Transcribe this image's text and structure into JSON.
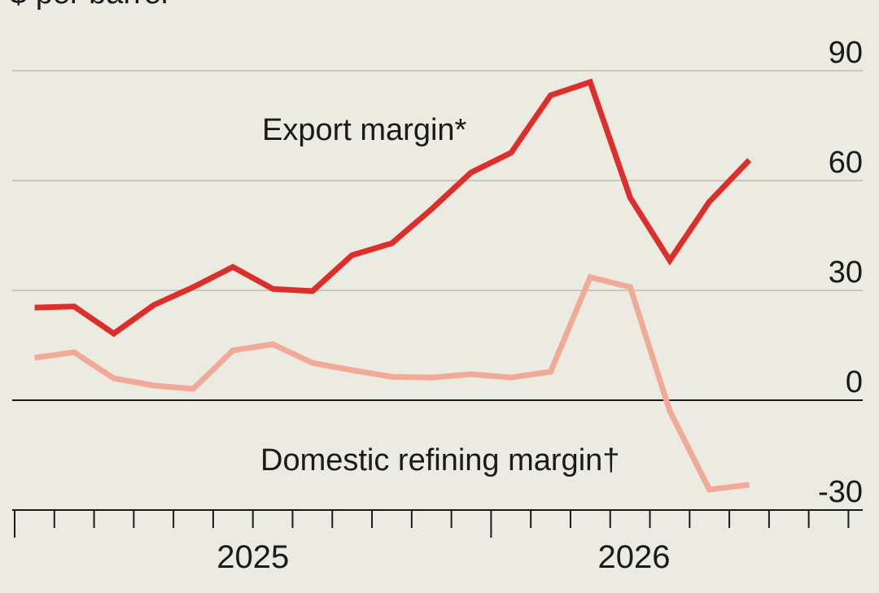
{
  "chart_data": {
    "type": "line",
    "subtitle": "$ per barrel",
    "x": [
      2025.042,
      2025.125,
      2025.208,
      2025.292,
      2025.375,
      2025.458,
      2025.542,
      2025.625,
      2025.708,
      2025.792,
      2025.875,
      2025.958,
      2026.042,
      2026.125,
      2026.208,
      2026.292,
      2026.375,
      2026.458,
      2026.542
    ],
    "series": [
      {
        "name": "Export margin*",
        "color": "#dc2f2c",
        "values": [
          25.3,
          25.6,
          18.2,
          26,
          30.9,
          36.4,
          30.4,
          29.8,
          39.6,
          42.9,
          52.2,
          62.2,
          67.6,
          83.3,
          86.9,
          55.3,
          38.2,
          54.2,
          65.6
        ]
      },
      {
        "name": "Domestic refining margin†",
        "color": "#f2aa98",
        "values": [
          11.6,
          13.1,
          6,
          4,
          3.1,
          13.6,
          15.3,
          10.2,
          8.2,
          6.4,
          6.2,
          7.1,
          6.2,
          7.8,
          33.6,
          30.9,
          -2.9,
          -24.4,
          -23.1
        ]
      }
    ],
    "xlim": [
      2025,
      2026.78
    ],
    "xticks": [
      {
        "value": 2025.5,
        "label": "2025"
      },
      {
        "value": 2026.3,
        "label": "2026"
      }
    ],
    "ylim": [
      -30,
      90
    ],
    "yticks": [
      -30,
      0,
      30,
      60,
      90
    ],
    "grid": true
  }
}
